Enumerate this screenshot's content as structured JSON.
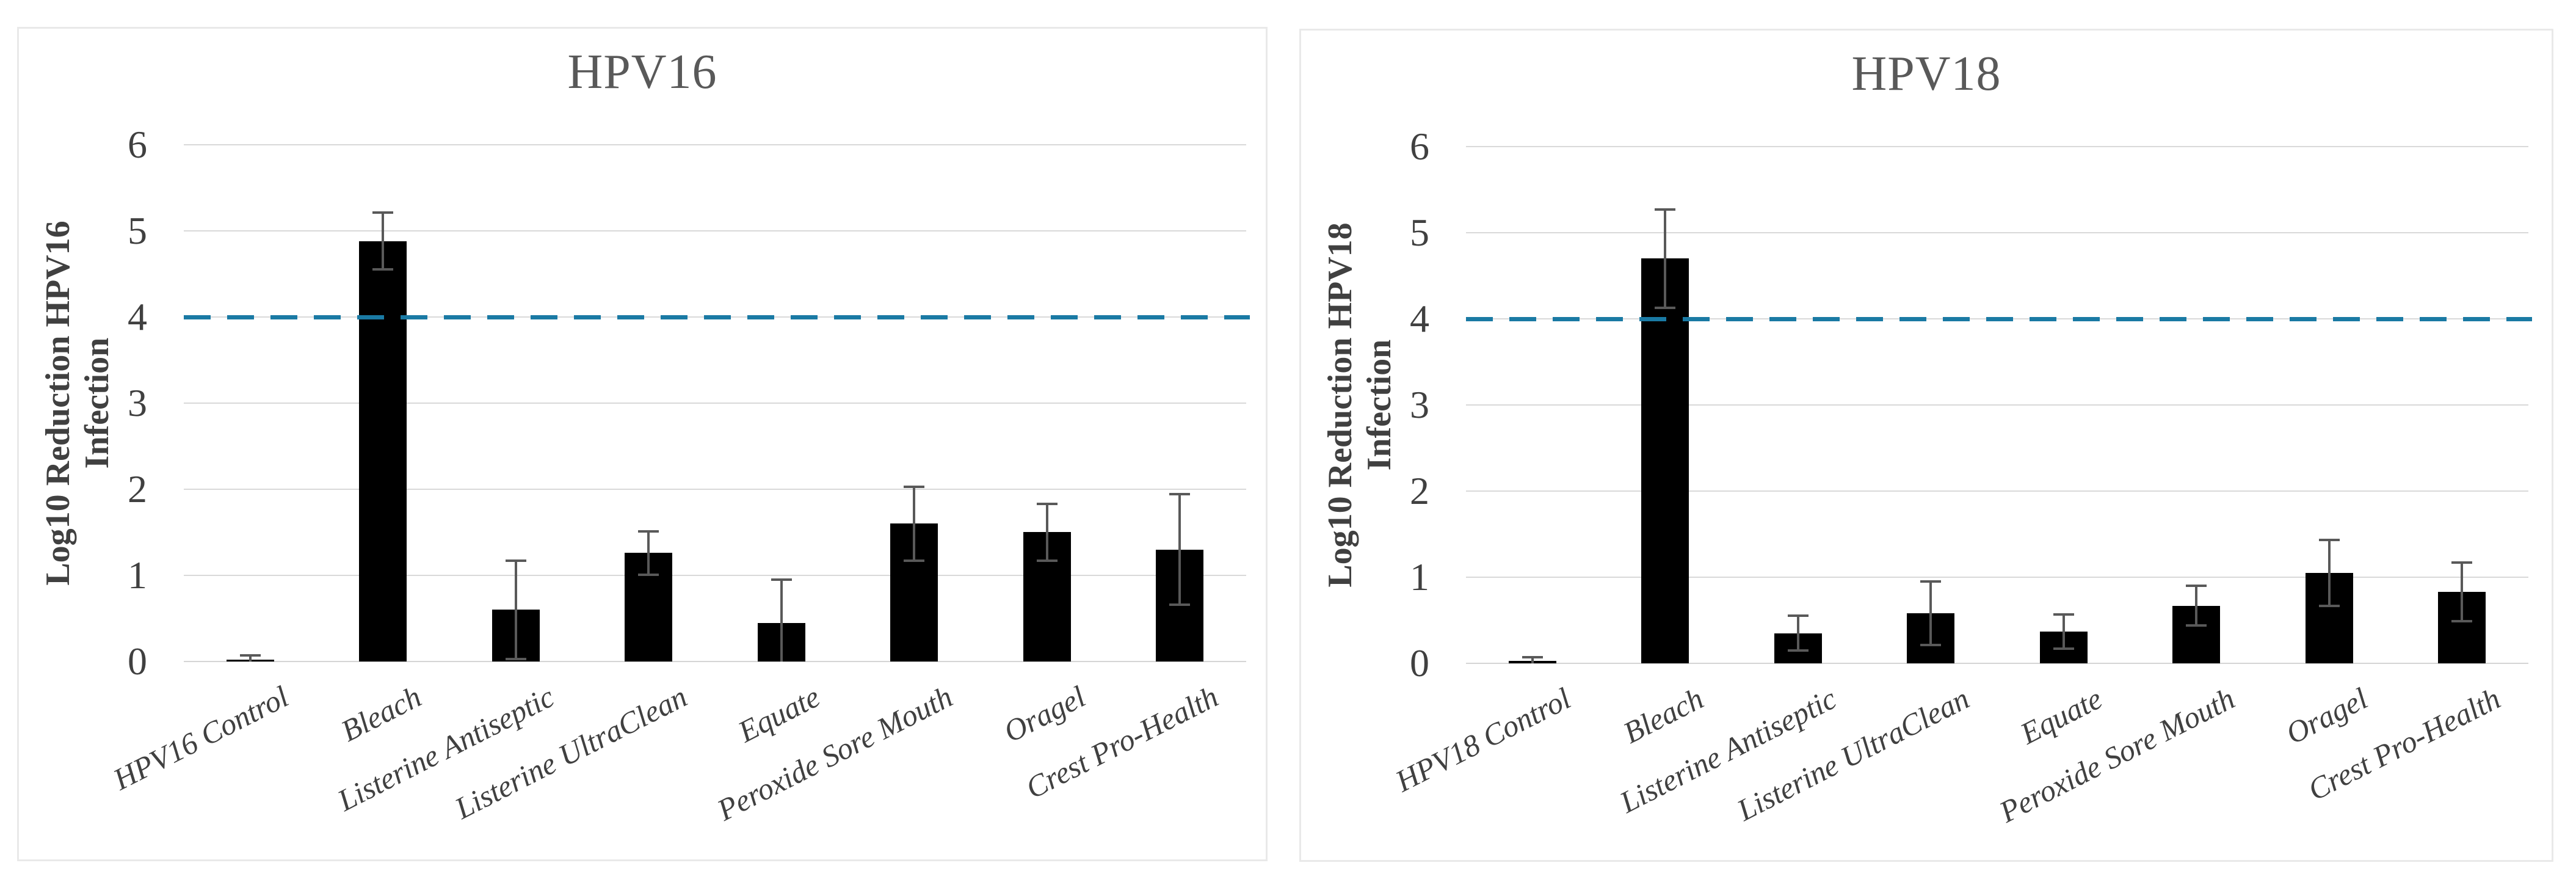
{
  "figure": {
    "description_colors": {
      "bar_color": "#000000",
      "error_bar_color": "#595959",
      "gridline_color": "#d9d9d9",
      "panel_border_color": "#e9e9e9",
      "title_color": "#595959",
      "axis_text_color": "#404040",
      "threshold_line_color": "#1A7AA4"
    }
  },
  "chart_data": [
    {
      "type": "bar",
      "title": "HPV16",
      "ylabel": "Log10 Reduction HPV16 Infection",
      "ylabel_lines": [
        "Log10 Reduction HPV16",
        "Infection"
      ],
      "xlabel": "",
      "categories": [
        "HPV16 Control",
        "Bleach",
        "Listerine Antiseptic",
        "Listerine UltraClean",
        "Equate",
        "Peroxide Sore Mouth",
        "Oragel",
        "Crest Pro-Health"
      ],
      "values": [
        0.02,
        4.88,
        0.6,
        1.26,
        0.45,
        1.6,
        1.5,
        1.3
      ],
      "error_bars": [
        0.05,
        0.33,
        0.57,
        0.25,
        0.5,
        0.43,
        0.33,
        0.64
      ],
      "ylim": [
        0,
        6
      ],
      "yticks": [
        0,
        1,
        2,
        3,
        4,
        5,
        6
      ],
      "grid": true,
      "legend_position": "none",
      "bar_color": "#000000",
      "reference_line": {
        "value": 4,
        "style": "dashed",
        "color": "#1A7AA4"
      }
    },
    {
      "type": "bar",
      "title": "HPV18",
      "ylabel": "Log10 Reduction HPV18 Infection",
      "ylabel_lines": [
        "Log10 Reduction HPV18",
        "Infection"
      ],
      "xlabel": "",
      "categories": [
        "HPV18 Control",
        "Bleach",
        "Listerine Antiseptic",
        "Listerine UltraClean",
        "Equate",
        "Peroxide Sore Mouth",
        "Oragel",
        "Crest Pro-Health"
      ],
      "values": [
        0.03,
        4.7,
        0.35,
        0.58,
        0.37,
        0.67,
        1.05,
        0.83
      ],
      "error_bars": [
        0.04,
        0.57,
        0.2,
        0.37,
        0.2,
        0.23,
        0.38,
        0.34
      ],
      "ylim": [
        0,
        6
      ],
      "yticks": [
        0,
        1,
        2,
        3,
        4,
        5,
        6
      ],
      "grid": true,
      "legend_position": "none",
      "bar_color": "#000000",
      "reference_line": {
        "value": 4,
        "style": "dashed",
        "color": "#1A7AA4"
      }
    }
  ]
}
